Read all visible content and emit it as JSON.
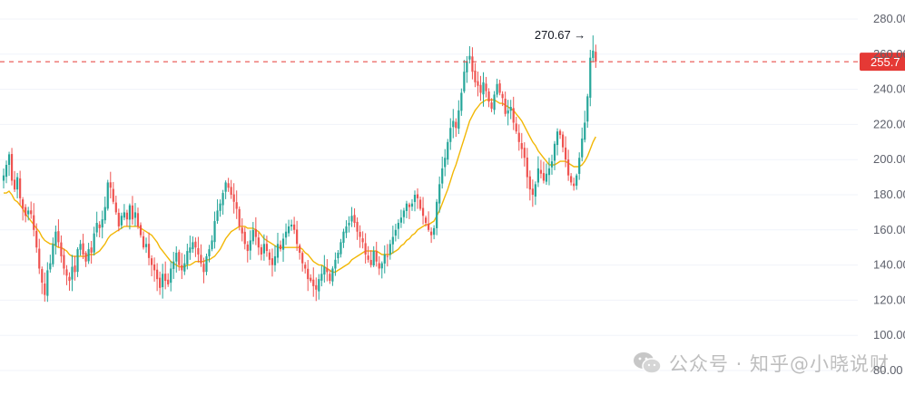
{
  "chart_data": {
    "type": "candlestick",
    "title": "",
    "xlabel": "",
    "ylabel": "",
    "y_ticks": [
      "280.00",
      "260.00",
      "240.00",
      "220.00",
      "200.00",
      "180.00",
      "160.00",
      "140.00",
      "120.00",
      "100.00",
      "80.00"
    ],
    "ylim": [
      80,
      280
    ],
    "grid": true,
    "current_price": {
      "value": 255.7,
      "label": "255.7",
      "line_color": "#e53935"
    },
    "high_marker": {
      "value": 270.67,
      "label": "270.67",
      "arrow": "→"
    },
    "up_color": "#26a69a",
    "down_color": "#ef5350",
    "ma_color": "#f2b705",
    "ma_period": 20,
    "closes": [
      191,
      197,
      203,
      188,
      183,
      190,
      178,
      172,
      168,
      171,
      169,
      160,
      150,
      138,
      130,
      123,
      137,
      141,
      152,
      159,
      153,
      145,
      138,
      134,
      131,
      139,
      136,
      149,
      152,
      146,
      142,
      149,
      147,
      158,
      164,
      161,
      166,
      173,
      187,
      184,
      176,
      170,
      162,
      168,
      170,
      166,
      174,
      166,
      170,
      162,
      157,
      150,
      152,
      144,
      140,
      137,
      132,
      127,
      135,
      131,
      129,
      138,
      142,
      147,
      140,
      137,
      141,
      148,
      150,
      153,
      150,
      146,
      141,
      136,
      145,
      149,
      154,
      165,
      171,
      175,
      181,
      187,
      184,
      180,
      176,
      172,
      162,
      158,
      152,
      148,
      154,
      160,
      156,
      150,
      146,
      152,
      148,
      143,
      140,
      145,
      152,
      149,
      155,
      159,
      162,
      163,
      160,
      152,
      147,
      141,
      138,
      132,
      131,
      128,
      126,
      132,
      135,
      139,
      136,
      131,
      138,
      143,
      147,
      153,
      159,
      162,
      164,
      168,
      164,
      159,
      156,
      153,
      146,
      143,
      140,
      148,
      142,
      138,
      141,
      146,
      145,
      152,
      156,
      160,
      164,
      167,
      171,
      175,
      173,
      175,
      180,
      178,
      172,
      168,
      164,
      160,
      157,
      161,
      176,
      186,
      195,
      201,
      210,
      218,
      222,
      218,
      228,
      238,
      250,
      256,
      259,
      250,
      244,
      242,
      238,
      244,
      239,
      233,
      229,
      237,
      243,
      238,
      235,
      226,
      228,
      230,
      221,
      216,
      210,
      206,
      201,
      190,
      183,
      180,
      186,
      195,
      192,
      188,
      192,
      195,
      199,
      209,
      216,
      214,
      207,
      200,
      191,
      187,
      185,
      191,
      201,
      212,
      221,
      236,
      258,
      262,
      255.7
    ],
    "ma20": [
      181,
      181,
      182,
      180,
      177,
      176,
      174,
      172,
      169,
      167,
      165,
      163,
      161,
      159,
      156,
      154,
      153,
      152,
      152,
      151,
      150,
      150,
      149,
      148,
      146,
      145,
      145,
      145,
      145,
      145,
      145,
      146,
      146,
      146,
      147,
      148,
      150,
      152,
      155,
      157,
      158,
      159,
      160,
      161,
      162,
      162,
      162,
      162,
      162,
      162,
      161,
      160,
      159,
      158,
      157,
      155,
      153,
      150,
      148,
      146,
      144,
      142,
      141,
      140,
      139,
      139,
      139,
      140,
      140,
      141,
      142,
      142,
      142,
      142,
      143,
      143,
      144,
      145,
      147,
      149,
      152,
      155,
      157,
      159,
      160,
      161,
      162,
      162,
      162,
      161,
      161,
      161,
      160,
      159,
      157,
      155,
      154,
      153,
      152,
      151,
      150,
      150,
      150,
      150,
      150,
      150,
      150,
      150,
      150,
      149,
      147,
      146,
      144,
      142,
      141,
      140,
      140,
      139,
      138,
      137,
      136,
      136,
      137,
      138,
      139,
      140,
      141,
      143,
      144,
      145,
      146,
      147,
      148,
      148,
      148,
      148,
      148,
      147,
      146,
      146,
      146,
      146,
      147,
      148,
      149,
      151,
      152,
      154,
      155,
      157,
      158,
      160,
      161,
      162,
      163,
      163,
      164,
      165,
      168,
      171,
      175,
      179,
      183,
      188,
      193,
      197,
      202,
      207,
      212,
      217,
      222,
      225,
      228,
      230,
      232,
      233,
      234,
      234,
      234,
      234,
      233,
      232,
      232,
      231,
      230,
      229,
      228,
      226,
      224,
      222,
      219,
      216,
      213,
      210,
      208,
      205,
      203,
      201,
      199,
      197,
      197,
      197,
      198,
      199,
      199,
      199,
      198,
      197,
      196,
      196,
      196,
      197,
      199,
      202,
      206,
      210,
      213
    ]
  },
  "watermark": {
    "text": "公众号 · 知乎@小晓说财"
  }
}
